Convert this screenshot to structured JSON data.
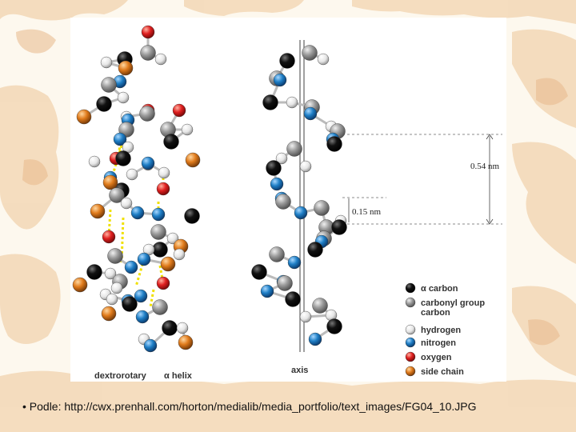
{
  "slide": {
    "caption": "• Podle: http://cwx.prenhall.com/horton/medialib/media_portfolio/text_images/FG04_10.JPG"
  },
  "figure": {
    "left_label_1": "dextrorotary",
    "left_label_2": "α helix",
    "axis_label": "axis",
    "rise_label": "0.54 nm",
    "step_label": "0.15 nm"
  },
  "legend": {
    "items": [
      {
        "label_lines": [
          "α  carbon"
        ],
        "color": "#111111"
      },
      {
        "label_lines": [
          "carbonyl group",
          "carbon"
        ],
        "color": "#9a9a9a"
      },
      {
        "label_lines": [
          "hydrogen"
        ],
        "color": "#f2f2f2"
      },
      {
        "label_lines": [
          "nitrogen"
        ],
        "color": "#1f7fc6"
      },
      {
        "label_lines": [
          "oxygen"
        ],
        "color": "#e02020"
      },
      {
        "label_lines": [
          "side chain"
        ],
        "color": "#e07b1c"
      }
    ]
  },
  "colors": {
    "alpha_carbon": "#111111",
    "carbonyl_carbon": "#9a9a9a",
    "hydrogen": "#f2f2f2",
    "nitrogen": "#1f7fc6",
    "oxygen": "#e02020",
    "side_chain": "#e07b1c",
    "hbond": "#f0e000",
    "background_blot": "#f3d9b8"
  }
}
